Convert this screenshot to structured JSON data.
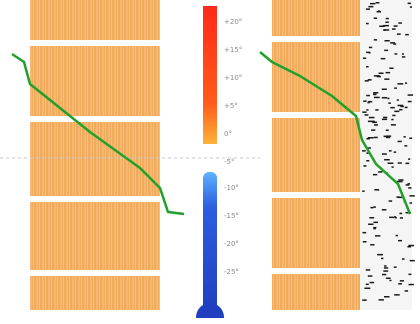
{
  "diagram": {
    "walls": [
      {
        "name": "left-wall",
        "texture": "brick"
      },
      {
        "name": "right-wall",
        "texture": "brick-with-insulation"
      }
    ],
    "temperature_profile_color": "#22a02a",
    "thermometer": {
      "warm_color": "#ff2a1a",
      "cold_color": "#1f4fd8",
      "scale_labels": [
        "+20°",
        "+15°",
        "+10°",
        "+5°",
        "0°",
        "-5°",
        "-10°",
        "-15°",
        "-20°",
        "-25°"
      ]
    },
    "colors": {
      "brick_base": "#f2a93a",
      "brick_pink": "#f4b6b0",
      "mortar": "#ffffff",
      "insulation_bg": "#f5f5f5",
      "insulation_fleck": "#1a1a1a",
      "zero_line": "#c8c8c8"
    }
  }
}
